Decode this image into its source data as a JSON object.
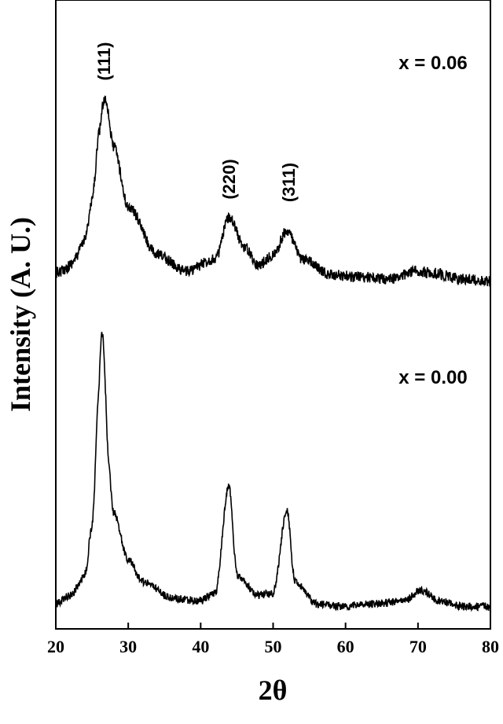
{
  "chart_data": {
    "type": "line",
    "xlabel": "2θ",
    "ylabel": "Intensity (A. U.)",
    "xlim": [
      20,
      80
    ],
    "xticks": [
      20,
      30,
      40,
      50,
      60,
      70,
      80
    ],
    "y_axis": "arbitrary units, no tick labels",
    "grid": false,
    "series": [
      {
        "name": "x = 0.06",
        "peaks": [
          {
            "hkl": "(111)",
            "x": 26.8,
            "height": 0.92,
            "width": 1.6
          },
          {
            "hkl": "(220)",
            "x": 44.0,
            "height": 0.33,
            "width": 1.2
          },
          {
            "hkl": "(311)",
            "x": 51.9,
            "height": 0.26,
            "width": 1.5
          }
        ],
        "x": [
          20,
          22,
          24,
          25,
          26,
          26.8,
          28,
          30,
          34,
          38,
          42,
          44,
          46,
          48,
          50,
          51.9,
          54,
          58,
          62,
          66,
          70,
          72,
          76,
          80
        ],
        "y": [
          0.04,
          0.08,
          0.2,
          0.4,
          0.75,
          0.92,
          0.68,
          0.38,
          0.14,
          0.06,
          0.12,
          0.33,
          0.18,
          0.09,
          0.14,
          0.26,
          0.12,
          0.04,
          0.03,
          0.02,
          0.06,
          0.05,
          0.02,
          0.01
        ]
      },
      {
        "name": "x = 0.00",
        "peaks": [
          {
            "hkl": "(111)",
            "x": 26.4,
            "height": 1.0,
            "width": 0.9
          },
          {
            "hkl": "(220)",
            "x": 43.9,
            "height": 0.45,
            "width": 0.7
          },
          {
            "hkl": "(311)",
            "x": 51.9,
            "height": 0.36,
            "width": 0.7
          }
        ],
        "x": [
          20,
          22,
          24,
          25,
          26,
          26.4,
          27,
          28,
          30,
          32,
          36,
          40,
          42,
          43.9,
          45,
          48,
          50,
          51.9,
          53,
          56,
          60,
          64,
          68,
          70.5,
          73,
          76,
          80
        ],
        "y": [
          0.02,
          0.05,
          0.12,
          0.3,
          0.8,
          1.0,
          0.6,
          0.35,
          0.18,
          0.1,
          0.04,
          0.03,
          0.06,
          0.45,
          0.12,
          0.05,
          0.06,
          0.36,
          0.1,
          0.02,
          0.01,
          0.02,
          0.03,
          0.07,
          0.03,
          0.01,
          0.01
        ]
      }
    ],
    "annotations": [
      "(111)",
      "(220)",
      "(311)"
    ]
  }
}
